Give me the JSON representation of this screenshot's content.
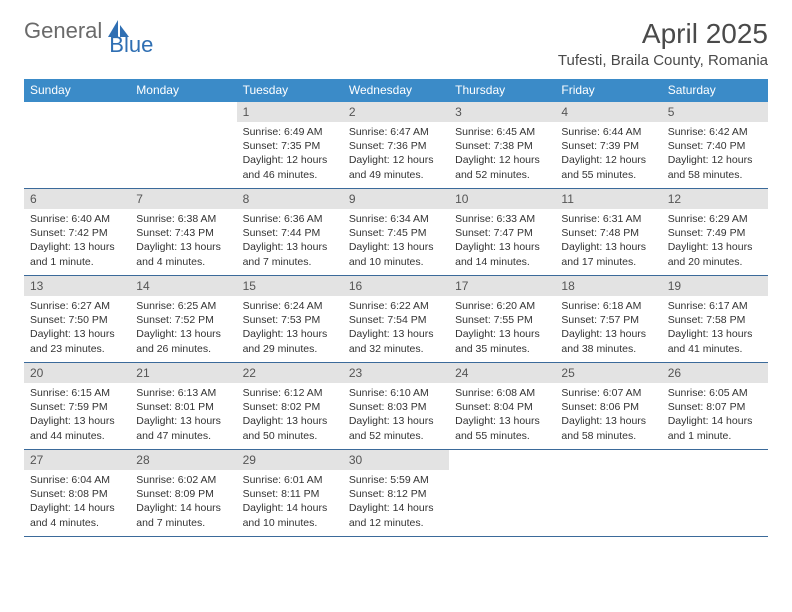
{
  "logo": {
    "text1": "General",
    "text2": "Blue"
  },
  "title": "April 2025",
  "location": "Tufesti, Braila County, Romania",
  "colors": {
    "header_bg": "#3b8bc8",
    "header_text": "#ffffff",
    "daynum_bg": "#e3e3e3",
    "rule": "#3b6a9a",
    "logo_gray": "#6a6a6a",
    "logo_blue": "#2f6fb3"
  },
  "font": {
    "family": "Arial",
    "title_size": 28,
    "location_size": 15,
    "dow_size": 12,
    "daynum_size": 12,
    "body_size": 10.5
  },
  "days_of_week": [
    "Sunday",
    "Monday",
    "Tuesday",
    "Wednesday",
    "Thursday",
    "Friday",
    "Saturday"
  ],
  "weeks": [
    [
      null,
      null,
      {
        "n": "1",
        "sunrise": "Sunrise: 6:49 AM",
        "sunset": "Sunset: 7:35 PM",
        "daylight": "Daylight: 12 hours and 46 minutes."
      },
      {
        "n": "2",
        "sunrise": "Sunrise: 6:47 AM",
        "sunset": "Sunset: 7:36 PM",
        "daylight": "Daylight: 12 hours and 49 minutes."
      },
      {
        "n": "3",
        "sunrise": "Sunrise: 6:45 AM",
        "sunset": "Sunset: 7:38 PM",
        "daylight": "Daylight: 12 hours and 52 minutes."
      },
      {
        "n": "4",
        "sunrise": "Sunrise: 6:44 AM",
        "sunset": "Sunset: 7:39 PM",
        "daylight": "Daylight: 12 hours and 55 minutes."
      },
      {
        "n": "5",
        "sunrise": "Sunrise: 6:42 AM",
        "sunset": "Sunset: 7:40 PM",
        "daylight": "Daylight: 12 hours and 58 minutes."
      }
    ],
    [
      {
        "n": "6",
        "sunrise": "Sunrise: 6:40 AM",
        "sunset": "Sunset: 7:42 PM",
        "daylight": "Daylight: 13 hours and 1 minute."
      },
      {
        "n": "7",
        "sunrise": "Sunrise: 6:38 AM",
        "sunset": "Sunset: 7:43 PM",
        "daylight": "Daylight: 13 hours and 4 minutes."
      },
      {
        "n": "8",
        "sunrise": "Sunrise: 6:36 AM",
        "sunset": "Sunset: 7:44 PM",
        "daylight": "Daylight: 13 hours and 7 minutes."
      },
      {
        "n": "9",
        "sunrise": "Sunrise: 6:34 AM",
        "sunset": "Sunset: 7:45 PM",
        "daylight": "Daylight: 13 hours and 10 minutes."
      },
      {
        "n": "10",
        "sunrise": "Sunrise: 6:33 AM",
        "sunset": "Sunset: 7:47 PM",
        "daylight": "Daylight: 13 hours and 14 minutes."
      },
      {
        "n": "11",
        "sunrise": "Sunrise: 6:31 AM",
        "sunset": "Sunset: 7:48 PM",
        "daylight": "Daylight: 13 hours and 17 minutes."
      },
      {
        "n": "12",
        "sunrise": "Sunrise: 6:29 AM",
        "sunset": "Sunset: 7:49 PM",
        "daylight": "Daylight: 13 hours and 20 minutes."
      }
    ],
    [
      {
        "n": "13",
        "sunrise": "Sunrise: 6:27 AM",
        "sunset": "Sunset: 7:50 PM",
        "daylight": "Daylight: 13 hours and 23 minutes."
      },
      {
        "n": "14",
        "sunrise": "Sunrise: 6:25 AM",
        "sunset": "Sunset: 7:52 PM",
        "daylight": "Daylight: 13 hours and 26 minutes."
      },
      {
        "n": "15",
        "sunrise": "Sunrise: 6:24 AM",
        "sunset": "Sunset: 7:53 PM",
        "daylight": "Daylight: 13 hours and 29 minutes."
      },
      {
        "n": "16",
        "sunrise": "Sunrise: 6:22 AM",
        "sunset": "Sunset: 7:54 PM",
        "daylight": "Daylight: 13 hours and 32 minutes."
      },
      {
        "n": "17",
        "sunrise": "Sunrise: 6:20 AM",
        "sunset": "Sunset: 7:55 PM",
        "daylight": "Daylight: 13 hours and 35 minutes."
      },
      {
        "n": "18",
        "sunrise": "Sunrise: 6:18 AM",
        "sunset": "Sunset: 7:57 PM",
        "daylight": "Daylight: 13 hours and 38 minutes."
      },
      {
        "n": "19",
        "sunrise": "Sunrise: 6:17 AM",
        "sunset": "Sunset: 7:58 PM",
        "daylight": "Daylight: 13 hours and 41 minutes."
      }
    ],
    [
      {
        "n": "20",
        "sunrise": "Sunrise: 6:15 AM",
        "sunset": "Sunset: 7:59 PM",
        "daylight": "Daylight: 13 hours and 44 minutes."
      },
      {
        "n": "21",
        "sunrise": "Sunrise: 6:13 AM",
        "sunset": "Sunset: 8:01 PM",
        "daylight": "Daylight: 13 hours and 47 minutes."
      },
      {
        "n": "22",
        "sunrise": "Sunrise: 6:12 AM",
        "sunset": "Sunset: 8:02 PM",
        "daylight": "Daylight: 13 hours and 50 minutes."
      },
      {
        "n": "23",
        "sunrise": "Sunrise: 6:10 AM",
        "sunset": "Sunset: 8:03 PM",
        "daylight": "Daylight: 13 hours and 52 minutes."
      },
      {
        "n": "24",
        "sunrise": "Sunrise: 6:08 AM",
        "sunset": "Sunset: 8:04 PM",
        "daylight": "Daylight: 13 hours and 55 minutes."
      },
      {
        "n": "25",
        "sunrise": "Sunrise: 6:07 AM",
        "sunset": "Sunset: 8:06 PM",
        "daylight": "Daylight: 13 hours and 58 minutes."
      },
      {
        "n": "26",
        "sunrise": "Sunrise: 6:05 AM",
        "sunset": "Sunset: 8:07 PM",
        "daylight": "Daylight: 14 hours and 1 minute."
      }
    ],
    [
      {
        "n": "27",
        "sunrise": "Sunrise: 6:04 AM",
        "sunset": "Sunset: 8:08 PM",
        "daylight": "Daylight: 14 hours and 4 minutes."
      },
      {
        "n": "28",
        "sunrise": "Sunrise: 6:02 AM",
        "sunset": "Sunset: 8:09 PM",
        "daylight": "Daylight: 14 hours and 7 minutes."
      },
      {
        "n": "29",
        "sunrise": "Sunrise: 6:01 AM",
        "sunset": "Sunset: 8:11 PM",
        "daylight": "Daylight: 14 hours and 10 minutes."
      },
      {
        "n": "30",
        "sunrise": "Sunrise: 5:59 AM",
        "sunset": "Sunset: 8:12 PM",
        "daylight": "Daylight: 14 hours and 12 minutes."
      },
      null,
      null,
      null
    ]
  ]
}
